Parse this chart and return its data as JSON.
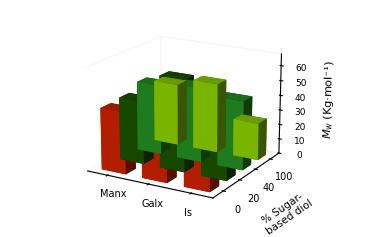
{
  "ylabel": "$M_w$ (Kg·mol⁻¹)",
  "xlabel_depth": "% Sugar-\nbased diol",
  "x_labels": [
    "Manx",
    "Galx",
    "Is"
  ],
  "z_tick_labels": [
    "0",
    "20",
    "40",
    "100"
  ],
  "yticks": [
    0,
    10,
    20,
    30,
    40,
    50,
    60
  ],
  "bar_data": [
    [
      41,
      41,
      41
    ],
    [
      42,
      61,
      50
    ],
    [
      47,
      50,
      46
    ],
    [
      42,
      47,
      25
    ]
  ],
  "colors": [
    "#CC2200",
    "#1A5200",
    "#228B22",
    "#88CC00"
  ],
  "figsize": [
    3.92,
    2.37
  ],
  "dpi": 100,
  "elev": 18,
  "azim": -60
}
